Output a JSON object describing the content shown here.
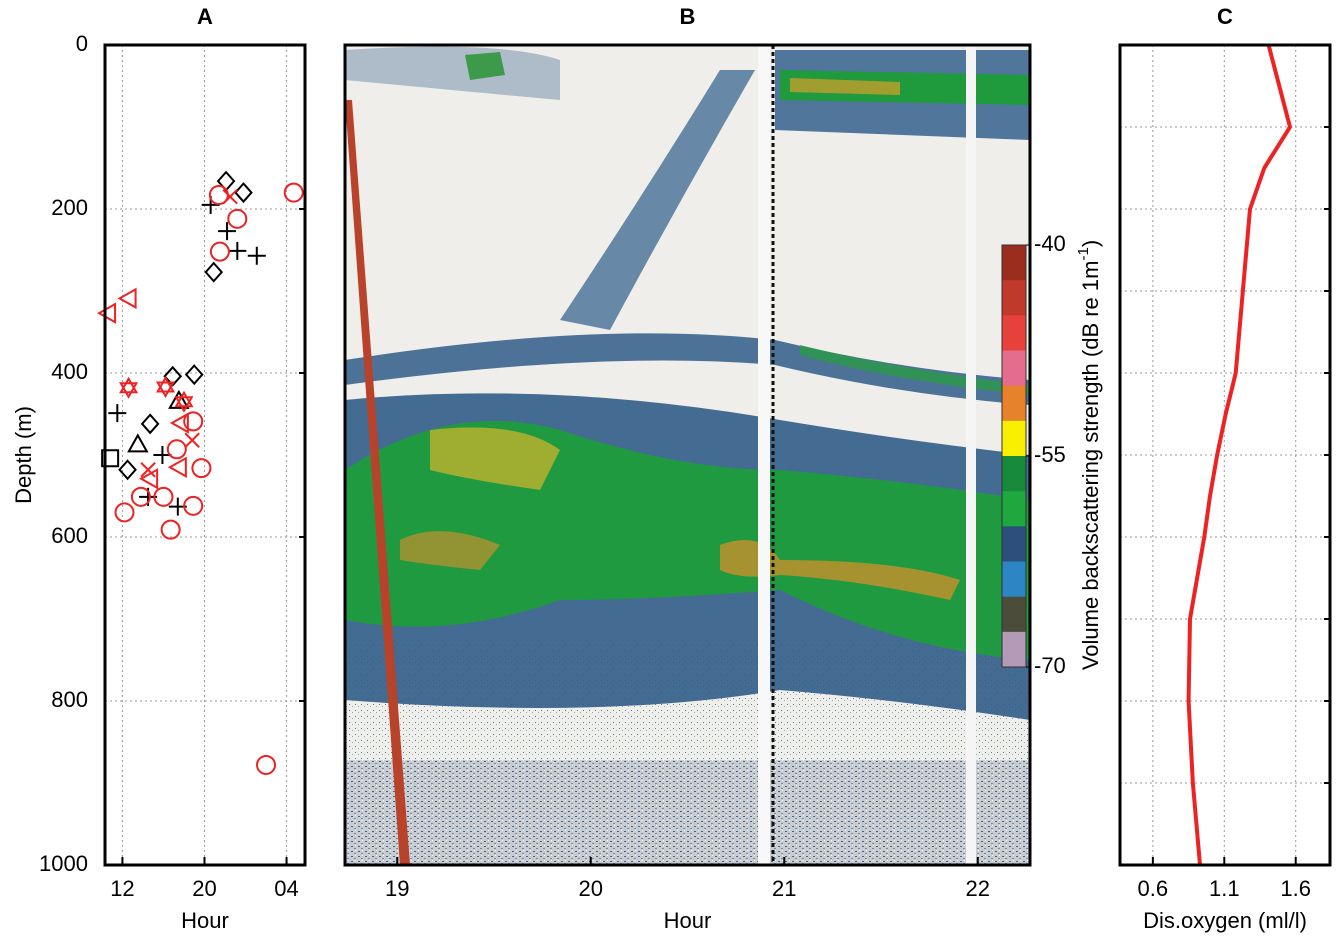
{
  "chart_data": [
    {
      "type": "scatter",
      "title": "A",
      "xlabel": "Hour",
      "ylabel": "Depth (m)",
      "xlim": [
        10.3,
        29.8
      ],
      "xticks": [
        12,
        20,
        {
          "value": 28,
          "label": "04"
        }
      ],
      "ylim": [
        0,
        1000
      ],
      "y_inverted": true,
      "yticks": [
        0,
        200,
        400,
        600,
        800,
        1000
      ],
      "ytick_labels": true,
      "grid": true,
      "series": [
        {
          "marker": "plus",
          "color": "#000000",
          "x": [
            20.6,
            22.2,
            23.2,
            25.1,
            11.5,
            15.9,
            14.5,
            17.4
          ],
          "values": [
            195,
            227,
            251,
            257,
            449,
            500,
            551,
            563
          ]
        },
        {
          "marker": "diamond",
          "color": "#000000",
          "x": [
            22.1,
            23.8,
            20.9,
            16.9,
            19.0,
            14.7,
            12.5
          ],
          "values": [
            166,
            180,
            277,
            404,
            402,
            462,
            518
          ]
        },
        {
          "marker": "triangle-up",
          "color": "#000000",
          "x": [
            17.5,
            13.5
          ],
          "values": [
            434,
            487
          ]
        },
        {
          "marker": "square",
          "color": "#000000",
          "x": [
            10.8
          ],
          "values": [
            504
          ]
        },
        {
          "marker": "circle",
          "color": "#ee2222",
          "x": [
            28.7,
            21.4,
            23.2,
            21.5,
            18.9,
            17.3,
            19.7,
            12.2,
            13.8,
            16.0,
            18.9,
            16.7,
            26.0
          ],
          "values": [
            180,
            183,
            212,
            252,
            459,
            493,
            516,
            570,
            551,
            551,
            562,
            591,
            878
          ]
        },
        {
          "marker": "triangle-left",
          "color": "#ee2222",
          "x": [
            10.6,
            12.6,
            17.7,
            17.5,
            14.7
          ],
          "values": [
            327,
            309,
            461,
            515,
            529
          ]
        },
        {
          "marker": "star",
          "color": "#ee2222",
          "x": [
            12.6,
            16.2,
            18.0
          ],
          "values": [
            418,
            417,
            435
          ]
        },
        {
          "marker": "x",
          "color": "#ee2222",
          "x": [
            22.5,
            18.8,
            14.5
          ],
          "values": [
            185,
            482,
            518
          ]
        }
      ]
    },
    {
      "type": "echogram",
      "title": "B",
      "xlabel": "Hour",
      "xlim": [
        18.73,
        22.27
      ],
      "xticks": [
        19,
        20,
        21,
        22
      ],
      "ylim": [
        0,
        1000
      ],
      "y_inverted": true,
      "colorbar": {
        "colors": [
          "#9b2d1f",
          "#c0392b",
          "#e8403a",
          "#e46c8c",
          "#e8822a",
          "#f8f000",
          "#178a3c",
          "#1fa83e",
          "#2c4f7c",
          "#2d86c4",
          "#4c4c3a",
          "#b59ab8"
        ],
        "lim": [
          -70,
          -40
        ],
        "ticks": [
          -40,
          -55,
          -70
        ],
        "label": "Volume backscattering strength (dB re 1m",
        "label_superscript": "-1",
        "label_close": ")"
      }
    },
    {
      "type": "line",
      "title": "C",
      "xlabel": "Dis.oxygen (ml/l)",
      "color": "#ee2222",
      "xlim": [
        0.37,
        1.84
      ],
      "xticks": [
        0.6,
        1.1,
        1.6
      ],
      "ylim": [
        0,
        1000
      ],
      "y_inverted": true,
      "yticks": [
        0,
        100,
        200,
        300,
        400,
        500,
        600,
        700,
        800,
        900,
        1000
      ],
      "ytick_labels": false,
      "grid": true,
      "x": [
        1.41,
        1.56,
        1.38,
        1.28,
        1.23,
        1.18,
        1.11,
        1.05,
        1.0,
        0.96,
        0.91,
        0.86,
        0.85,
        0.88,
        0.93
      ],
      "values": [
        0,
        100,
        150,
        200,
        300,
        400,
        450,
        500,
        550,
        600,
        650,
        700,
        800,
        900,
        1000
      ]
    }
  ]
}
